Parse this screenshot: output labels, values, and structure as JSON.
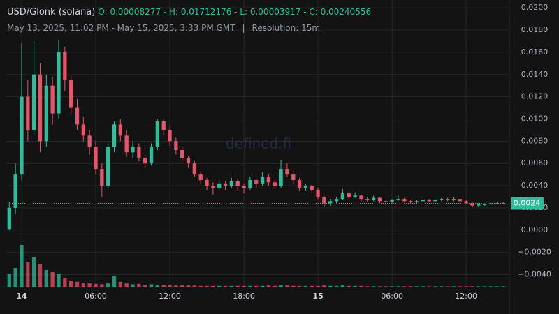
{
  "header": {
    "symbol": "USD/Glonk (solana)",
    "ohlc_text": "O: 0.00008277 - H: 0.01712176 - L: 0.00003917 - C: 0.00240556",
    "range": "May 13, 2025, 11:02 PM - May 15, 2025, 3:33 PM GMT",
    "separator": "|",
    "resolution": "Resolution: 15m"
  },
  "watermark": "defined.fi",
  "chart_data": {
    "type": "candlestick",
    "up_color": "#2ebd9b",
    "down_color": "#e5566a",
    "grid": true,
    "xlim": [
      -1.3,
      39.5
    ],
    "xticks": [
      {
        "value": 0,
        "label": "14"
      },
      {
        "value": 6,
        "label": "06:00"
      },
      {
        "value": 12,
        "label": "12:00"
      },
      {
        "value": 18,
        "label": "18:00"
      },
      {
        "value": 24,
        "label": "15"
      },
      {
        "value": 30,
        "label": "06:00"
      },
      {
        "value": 36,
        "label": "12:00"
      }
    ],
    "ylim": [
      -0.0051,
      0.0202
    ],
    "yticks": [
      {
        "value": 0.02,
        "label": "0.0200"
      },
      {
        "value": 0.018,
        "label": "0.0180"
      },
      {
        "value": 0.016,
        "label": "0.0160"
      },
      {
        "value": 0.014,
        "label": "0.0140"
      },
      {
        "value": 0.012,
        "label": "0.0120"
      },
      {
        "value": 0.01,
        "label": "0.0100"
      },
      {
        "value": 0.008,
        "label": "0.0080"
      },
      {
        "value": 0.006,
        "label": "0.0060"
      },
      {
        "value": 0.004,
        "label": "0.0040"
      },
      {
        "value": 0.002,
        "label": "0.0020"
      },
      {
        "value": 0,
        "label": "0.0000"
      },
      {
        "value": -0.002,
        "label": "−0.0020"
      },
      {
        "value": -0.004,
        "label": "−0.0040"
      }
    ],
    "last_price": {
      "value": 0.0024,
      "label": "0.0024"
    },
    "x": [
      -1,
      -0.5,
      0,
      0.5,
      1,
      1.5,
      2,
      2.5,
      3,
      3.5,
      4,
      4.5,
      5,
      5.5,
      6,
      6.5,
      7,
      7.5,
      8,
      8.5,
      9,
      9.5,
      10,
      10.5,
      11,
      11.5,
      12,
      12.5,
      13,
      13.5,
      14,
      14.5,
      15,
      15.5,
      16,
      16.5,
      17,
      17.5,
      18,
      18.5,
      19,
      19.5,
      20,
      20.5,
      21,
      21.5,
      22,
      22.5,
      23,
      23.5,
      24,
      24.5,
      25,
      25.5,
      26,
      26.5,
      27,
      27.5,
      28,
      28.5,
      29,
      29.5,
      30,
      30.5,
      31,
      31.5,
      32,
      32.5,
      33,
      33.5,
      34,
      34.5,
      35,
      35.5,
      36,
      36.5,
      37,
      37.5,
      38,
      38.5,
      39
    ],
    "ohlc": [
      [
        0.0001,
        0.0025,
        0.0,
        0.002
      ],
      [
        0.002,
        0.006,
        0.0015,
        0.005
      ],
      [
        0.005,
        0.0168,
        0.0045,
        0.012
      ],
      [
        0.012,
        0.0135,
        0.008,
        0.009
      ],
      [
        0.009,
        0.017,
        0.0085,
        0.014
      ],
      [
        0.014,
        0.015,
        0.007,
        0.008
      ],
      [
        0.008,
        0.014,
        0.0075,
        0.013
      ],
      [
        0.013,
        0.0138,
        0.0095,
        0.0105
      ],
      [
        0.0105,
        0.0171,
        0.01,
        0.016
      ],
      [
        0.016,
        0.0165,
        0.0125,
        0.0135
      ],
      [
        0.0135,
        0.014,
        0.0105,
        0.011
      ],
      [
        0.011,
        0.0118,
        0.009,
        0.0095
      ],
      [
        0.0095,
        0.0102,
        0.008,
        0.0085
      ],
      [
        0.0085,
        0.009,
        0.0068,
        0.0075
      ],
      [
        0.0075,
        0.008,
        0.005,
        0.0055
      ],
      [
        0.0055,
        0.006,
        0.003,
        0.004
      ],
      [
        0.004,
        0.008,
        0.0038,
        0.0075
      ],
      [
        0.0075,
        0.0098,
        0.007,
        0.0095
      ],
      [
        0.0095,
        0.01,
        0.008,
        0.0085
      ],
      [
        0.0085,
        0.009,
        0.0066,
        0.007
      ],
      [
        0.007,
        0.008,
        0.0065,
        0.0075
      ],
      [
        0.0075,
        0.0078,
        0.0062,
        0.0065
      ],
      [
        0.0065,
        0.0068,
        0.0056,
        0.006
      ],
      [
        0.006,
        0.0078,
        0.0058,
        0.0075
      ],
      [
        0.0075,
        0.01,
        0.0072,
        0.0098
      ],
      [
        0.0098,
        0.01,
        0.0086,
        0.009
      ],
      [
        0.009,
        0.0093,
        0.0076,
        0.008
      ],
      [
        0.008,
        0.0083,
        0.0068,
        0.0072
      ],
      [
        0.0072,
        0.0075,
        0.0062,
        0.0065
      ],
      [
        0.0065,
        0.0067,
        0.0056,
        0.006
      ],
      [
        0.006,
        0.0062,
        0.0048,
        0.005
      ],
      [
        0.005,
        0.0053,
        0.0042,
        0.0045
      ],
      [
        0.0045,
        0.0047,
        0.0036,
        0.004
      ],
      [
        0.004,
        0.0043,
        0.0032,
        0.0038
      ],
      [
        0.0038,
        0.0045,
        0.0036,
        0.0042
      ],
      [
        0.0042,
        0.0044,
        0.0036,
        0.004
      ],
      [
        0.004,
        0.0047,
        0.0038,
        0.0044
      ],
      [
        0.0044,
        0.0046,
        0.0035,
        0.004
      ],
      [
        0.004,
        0.0042,
        0.0033,
        0.0038
      ],
      [
        0.0038,
        0.0048,
        0.0036,
        0.0045
      ],
      [
        0.0045,
        0.0047,
        0.0038,
        0.0042
      ],
      [
        0.0042,
        0.0052,
        0.004,
        0.0048
      ],
      [
        0.0048,
        0.005,
        0.004,
        0.0043
      ],
      [
        0.0043,
        0.0045,
        0.0037,
        0.004
      ],
      [
        0.004,
        0.0063,
        0.0038,
        0.0055
      ],
      [
        0.0055,
        0.006,
        0.0048,
        0.005
      ],
      [
        0.005,
        0.0053,
        0.0042,
        0.0045
      ],
      [
        0.0045,
        0.0047,
        0.0035,
        0.0038
      ],
      [
        0.0038,
        0.0042,
        0.0035,
        0.004
      ],
      [
        0.004,
        0.0041,
        0.0033,
        0.0036
      ],
      [
        0.0036,
        0.0038,
        0.0028,
        0.003
      ],
      [
        0.003,
        0.0031,
        0.0021,
        0.0024
      ],
      [
        0.0024,
        0.0028,
        0.0022,
        0.0026
      ],
      [
        0.0026,
        0.003,
        0.0024,
        0.0028
      ],
      [
        0.0028,
        0.0037,
        0.0027,
        0.0033
      ],
      [
        0.0033,
        0.0035,
        0.0028,
        0.003
      ],
      [
        0.003,
        0.0034,
        0.0029,
        0.0031
      ],
      [
        0.0031,
        0.0032,
        0.0026,
        0.0028
      ],
      [
        0.0028,
        0.003,
        0.0025,
        0.0027
      ],
      [
        0.0027,
        0.0031,
        0.0026,
        0.0029
      ],
      [
        0.0029,
        0.003,
        0.0024,
        0.0026
      ],
      [
        0.0026,
        0.0027,
        0.0022,
        0.0025
      ],
      [
        0.0025,
        0.0028,
        0.0024,
        0.0027
      ],
      [
        0.0027,
        0.0031,
        0.0026,
        0.0028
      ],
      [
        0.0028,
        0.0029,
        0.0025,
        0.0026
      ],
      [
        0.0026,
        0.0027,
        0.0023,
        0.0025
      ],
      [
        0.0025,
        0.0027,
        0.0024,
        0.0026
      ],
      [
        0.0026,
        0.0028,
        0.0025,
        0.0027
      ],
      [
        0.0027,
        0.0028,
        0.0025,
        0.0026
      ],
      [
        0.0026,
        0.0028,
        0.0025,
        0.0027
      ],
      [
        0.0027,
        0.0029,
        0.0026,
        0.0028
      ],
      [
        0.0028,
        0.0029,
        0.0026,
        0.0027
      ],
      [
        0.0027,
        0.003,
        0.0026,
        0.0028
      ],
      [
        0.0028,
        0.0029,
        0.0025,
        0.0026
      ],
      [
        0.0026,
        0.0027,
        0.0023,
        0.0024
      ],
      [
        0.0024,
        0.0025,
        0.0021,
        0.0022
      ],
      [
        0.0022,
        0.0024,
        0.0021,
        0.0023
      ],
      [
        0.0023,
        0.0024,
        0.0022,
        0.0023
      ],
      [
        0.0023,
        0.0025,
        0.0022,
        0.0024
      ],
      [
        0.0024,
        0.0025,
        0.0023,
        0.0024
      ],
      [
        0.0024,
        0.0025,
        0.0023,
        0.0024
      ]
    ],
    "volume": [
      30,
      45,
      100,
      60,
      70,
      55,
      40,
      35,
      30,
      20,
      15,
      12,
      10,
      8,
      7,
      6,
      8,
      25,
      12,
      8,
      6,
      7,
      5,
      6,
      5,
      4,
      4,
      3,
      3,
      3,
      3,
      2,
      2,
      2,
      2,
      2,
      2,
      2,
      2,
      2,
      2,
      2,
      3,
      2,
      5,
      3,
      2,
      2,
      2,
      2,
      2,
      3,
      2,
      2,
      3,
      2,
      2,
      2,
      1,
      1,
      1,
      1,
      1,
      1,
      1,
      1,
      1,
      1,
      1,
      1,
      1,
      1,
      1,
      1,
      1,
      1,
      1,
      1,
      1,
      1,
      1
    ]
  }
}
